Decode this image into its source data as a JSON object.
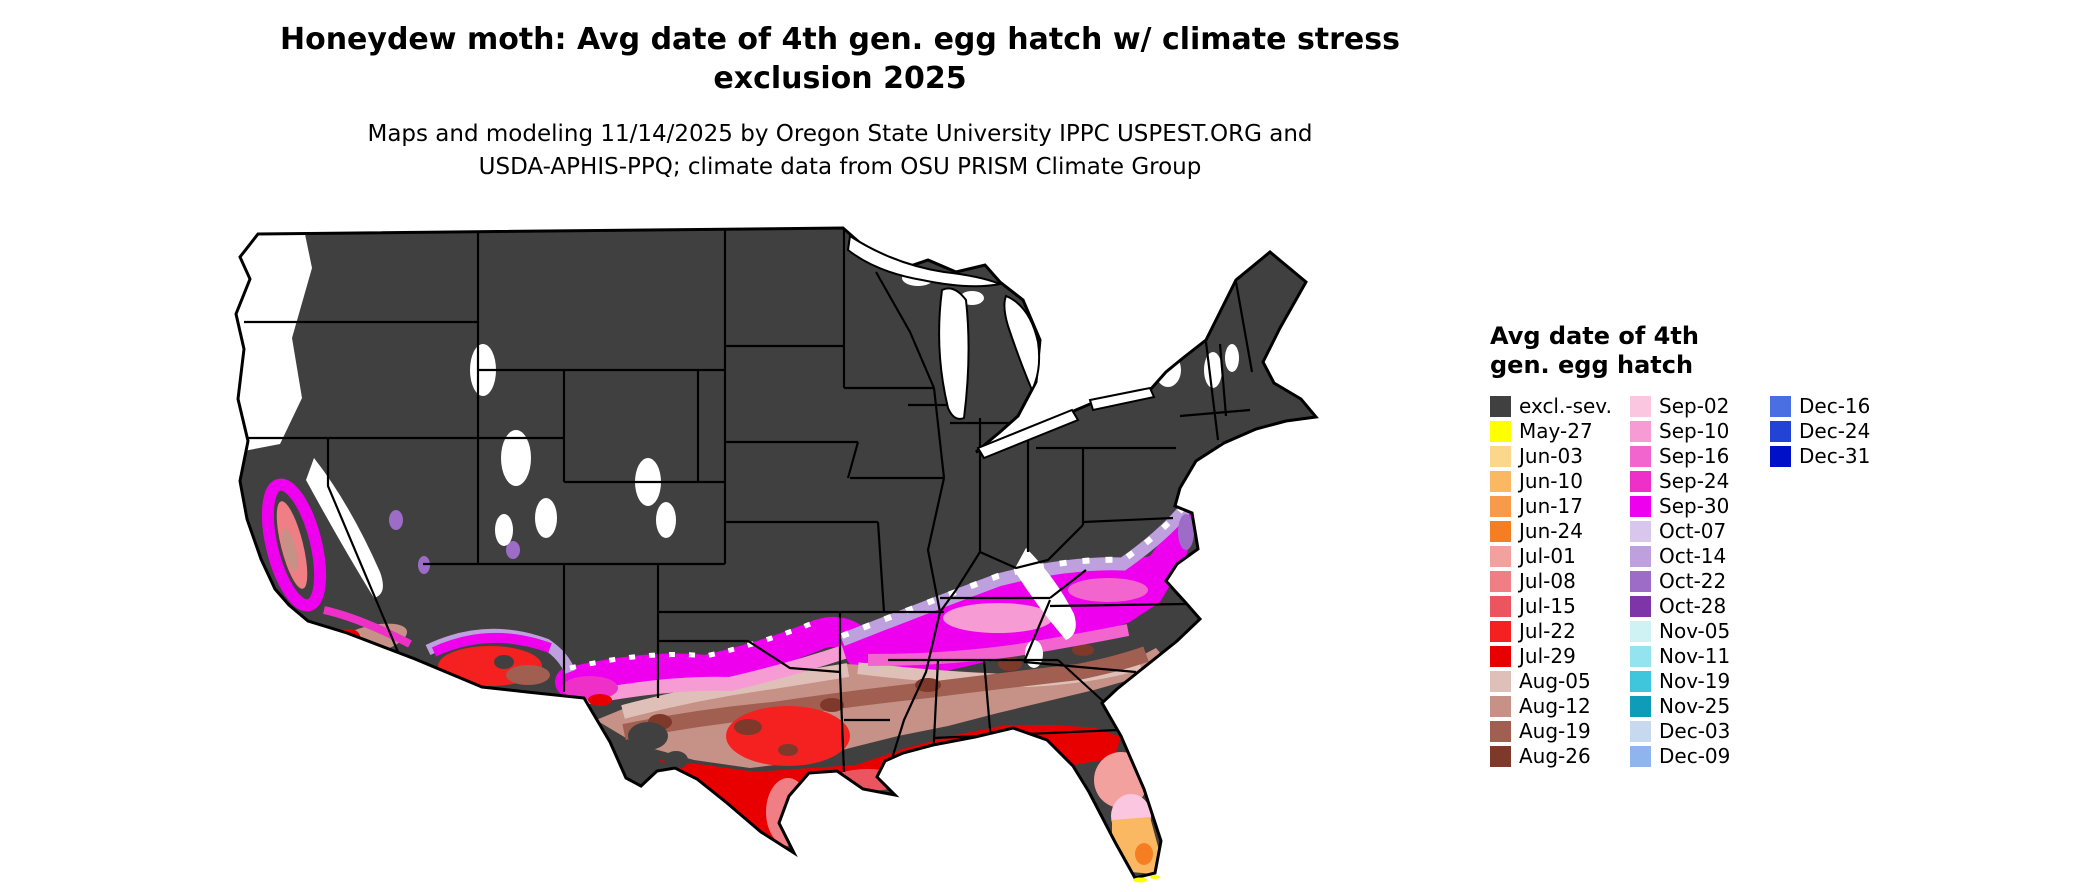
{
  "title": {
    "line1": "Honeydew moth: Avg date of 4th gen. egg hatch w/ climate stress",
    "line2": "exclusion 2025"
  },
  "subtitle": {
    "line1": "Maps and modeling 11/14/2025 by Oregon State University IPPC USPEST.ORG and",
    "line2": "USDA-APHIS-PPQ; climate data from OSU PRISM Climate Group"
  },
  "palette": {
    "excl": "#404040",
    "may27": "#FFFF00",
    "jun03": "#FBD78C",
    "jun10": "#FBB862",
    "jun17": "#F79A4A",
    "jun24": "#F57E22",
    "jul01": "#F2A19E",
    "jul08": "#EF7F84",
    "jul15": "#EA5560",
    "jul22": "#F52020",
    "jul29": "#E80000",
    "aug05": "#DFC0B8",
    "aug12": "#C69186",
    "aug19": "#A05F50",
    "aug26": "#7E392B",
    "sep02": "#FBC6E0",
    "sep10": "#F79BD4",
    "sep16": "#F264CE",
    "sep24": "#EE30C8",
    "sep30": "#EE00EE",
    "oct07": "#D9C6EC",
    "oct14": "#BFA0DE",
    "oct22": "#9D6CC6",
    "oct28": "#7E35A8",
    "nov05": "#CFF2F4",
    "nov11": "#93E4EE",
    "nov19": "#3FC6DC",
    "nov25": "#0E9CB8",
    "dec03": "#C6D9EE",
    "dec09": "#8FB4EE",
    "dec16": "#4A6FE3",
    "dec24": "#2343D6",
    "dec31": "#0010C8",
    "outline": "#000000",
    "nodata": "#FFFFFF"
  },
  "legend": {
    "title_line1": "Avg date of 4th",
    "title_line2": "gen. egg hatch",
    "columns": [
      {
        "entries": [
          {
            "label": "excl.-sev.",
            "key": "excl"
          },
          {
            "label": "May-27",
            "key": "may27"
          },
          {
            "label": "Jun-03",
            "key": "jun03"
          },
          {
            "label": "Jun-10",
            "key": "jun10"
          },
          {
            "label": "Jun-17",
            "key": "jun17"
          },
          {
            "label": "Jun-24",
            "key": "jun24"
          },
          {
            "label": "Jul-01",
            "key": "jul01"
          },
          {
            "label": "Jul-08",
            "key": "jul08"
          },
          {
            "label": "Jul-15",
            "key": "jul15"
          },
          {
            "label": "Jul-22",
            "key": "jul22"
          },
          {
            "label": "Jul-29",
            "key": "jul29"
          },
          {
            "label": "Aug-05",
            "key": "aug05"
          },
          {
            "label": "Aug-12",
            "key": "aug12"
          },
          {
            "label": "Aug-19",
            "key": "aug19"
          },
          {
            "label": "Aug-26",
            "key": "aug26"
          }
        ]
      },
      {
        "entries": [
          {
            "label": "Sep-02",
            "key": "sep02"
          },
          {
            "label": "Sep-10",
            "key": "sep10"
          },
          {
            "label": "Sep-16",
            "key": "sep16"
          },
          {
            "label": "Sep-24",
            "key": "sep24"
          },
          {
            "label": "Sep-30",
            "key": "sep30"
          },
          {
            "label": "Oct-07",
            "key": "oct07"
          },
          {
            "label": "Oct-14",
            "key": "oct14"
          },
          {
            "label": "Oct-22",
            "key": "oct22"
          },
          {
            "label": "Oct-28",
            "key": "oct28"
          },
          {
            "label": "Nov-05",
            "key": "nov05"
          },
          {
            "label": "Nov-11",
            "key": "nov11"
          },
          {
            "label": "Nov-19",
            "key": "nov19"
          },
          {
            "label": "Nov-25",
            "key": "nov25"
          },
          {
            "label": "Dec-03",
            "key": "dec03"
          },
          {
            "label": "Dec-09",
            "key": "dec09"
          }
        ]
      },
      {
        "entries": [
          {
            "label": "Dec-16",
            "key": "dec16"
          },
          {
            "label": "Dec-24",
            "key": "dec24"
          },
          {
            "label": "Dec-31",
            "key": "dec31"
          }
        ]
      }
    ]
  }
}
